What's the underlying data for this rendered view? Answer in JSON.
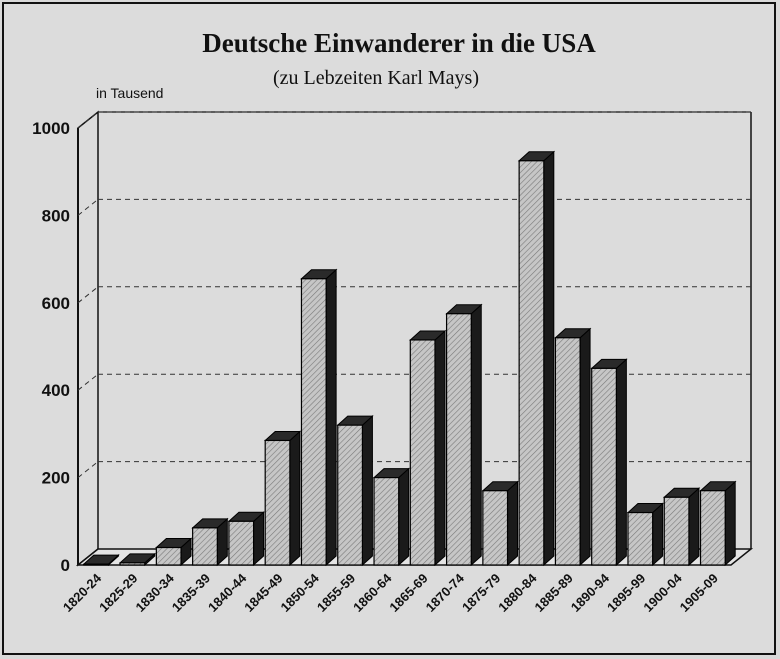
{
  "chart_data": {
    "type": "bar",
    "title": "Deutsche Einwanderer in die USA",
    "subtitle": "(zu Lebzeiten Karl Mays)",
    "ylabel": "in Tausend",
    "ylim": [
      0,
      1000
    ],
    "yticks": [
      "0",
      "200",
      "400",
      "600",
      "800",
      "1000"
    ],
    "grid": true,
    "categories": [
      "1820-24",
      "1825-29",
      "1830-34",
      "1835-39",
      "1840-44",
      "1845-49",
      "1850-54",
      "1855-59",
      "1860-64",
      "1865-69",
      "1870-74",
      "1875-79",
      "1880-84",
      "1885-89",
      "1890-94",
      "1895-99",
      "1900-04",
      "1905-09"
    ],
    "values": [
      2,
      5,
      40,
      85,
      100,
      285,
      655,
      320,
      200,
      515,
      575,
      170,
      925,
      520,
      450,
      120,
      155,
      170
    ],
    "colors": {
      "bar": "#bdbdbd",
      "bar_side": "#1a1a1a",
      "grid": "#222222"
    }
  }
}
